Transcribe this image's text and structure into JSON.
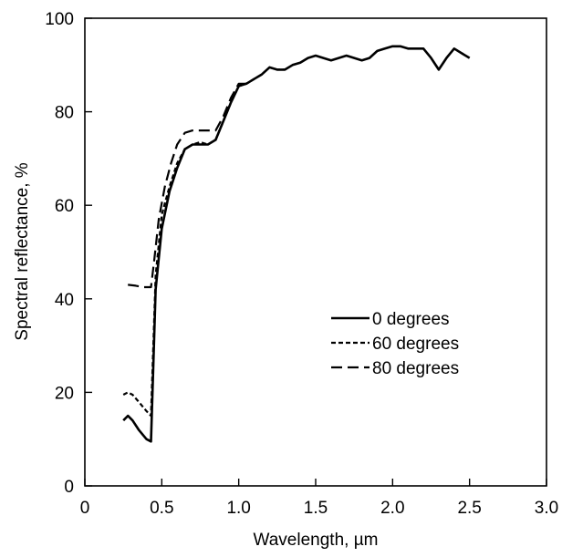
{
  "chart_data": {
    "type": "line",
    "title": "",
    "xlabel": "Wavelength, µm",
    "ylabel": "Spectral reflectance, %",
    "xlim": [
      0,
      3.0
    ],
    "ylim": [
      0,
      100
    ],
    "x_ticks": [
      0,
      0.5,
      1.0,
      1.5,
      2.0,
      2.5,
      3.0
    ],
    "x_tick_labels": [
      "0",
      "0.5",
      "1.0",
      "1.5",
      "2.0",
      "2.5",
      "3.0"
    ],
    "y_ticks": [
      0,
      20,
      40,
      60,
      80,
      100
    ],
    "y_tick_labels": [
      "0",
      "20",
      "40",
      "60",
      "80",
      "100"
    ],
    "grid": false,
    "legend_position": "center-right",
    "series": [
      {
        "name": "0 degrees",
        "line_style": "solid",
        "x": [
          0.25,
          0.28,
          0.31,
          0.35,
          0.4,
          0.43,
          0.46,
          0.5,
          0.55,
          0.6,
          0.65,
          0.7,
          0.75,
          0.8,
          0.85,
          0.9,
          0.95,
          1.0,
          1.05,
          1.1,
          1.15,
          1.2,
          1.25,
          1.3,
          1.35,
          1.4,
          1.45,
          1.5,
          1.55,
          1.6,
          1.65,
          1.7,
          1.75,
          1.8,
          1.85,
          1.9,
          1.95,
          2.0,
          2.05,
          2.1,
          2.15,
          2.2,
          2.25,
          2.3,
          2.35,
          2.4,
          2.45,
          2.5
        ],
        "y": [
          14,
          15,
          14,
          12,
          10,
          9.5,
          42,
          55,
          63,
          68,
          72,
          73,
          73,
          73,
          74,
          78,
          82,
          85.5,
          86,
          87,
          88,
          89.5,
          89,
          89,
          90,
          90.5,
          91.5,
          92,
          91.5,
          91,
          91.5,
          92,
          91.5,
          91,
          91.5,
          93,
          93.5,
          94,
          94,
          93.5,
          93.5,
          93.5,
          91.5,
          89,
          91.5,
          93.5,
          92.5,
          91.5
        ]
      },
      {
        "name": "60 degrees",
        "line_style": "dotted",
        "x": [
          0.25,
          0.28,
          0.31,
          0.35,
          0.4,
          0.43,
          0.46,
          0.5,
          0.55,
          0.6,
          0.65,
          0.7,
          0.75,
          0.8,
          0.85,
          0.9,
          0.95,
          1.0,
          1.05,
          1.1,
          1.15,
          1.2,
          1.25,
          1.3
        ],
        "y": [
          19.5,
          20,
          19.5,
          18,
          16,
          15,
          45,
          58,
          64,
          69,
          72,
          73,
          73.5,
          73,
          74,
          78,
          82,
          85.5,
          86,
          87,
          88,
          89.5,
          89,
          89
        ]
      },
      {
        "name": "80 degrees",
        "line_style": "dashed",
        "x": [
          0.28,
          0.33,
          0.38,
          0.43,
          0.45,
          0.48,
          0.52,
          0.56,
          0.6,
          0.65,
          0.7,
          0.75,
          0.8,
          0.85,
          0.9,
          0.95,
          1.0,
          1.05,
          1.1
        ],
        "y": [
          43,
          42.8,
          42.5,
          42.5,
          48,
          57,
          64,
          69,
          73,
          75.5,
          76,
          76,
          76,
          76,
          79,
          83,
          86,
          86,
          87
        ]
      }
    ]
  }
}
